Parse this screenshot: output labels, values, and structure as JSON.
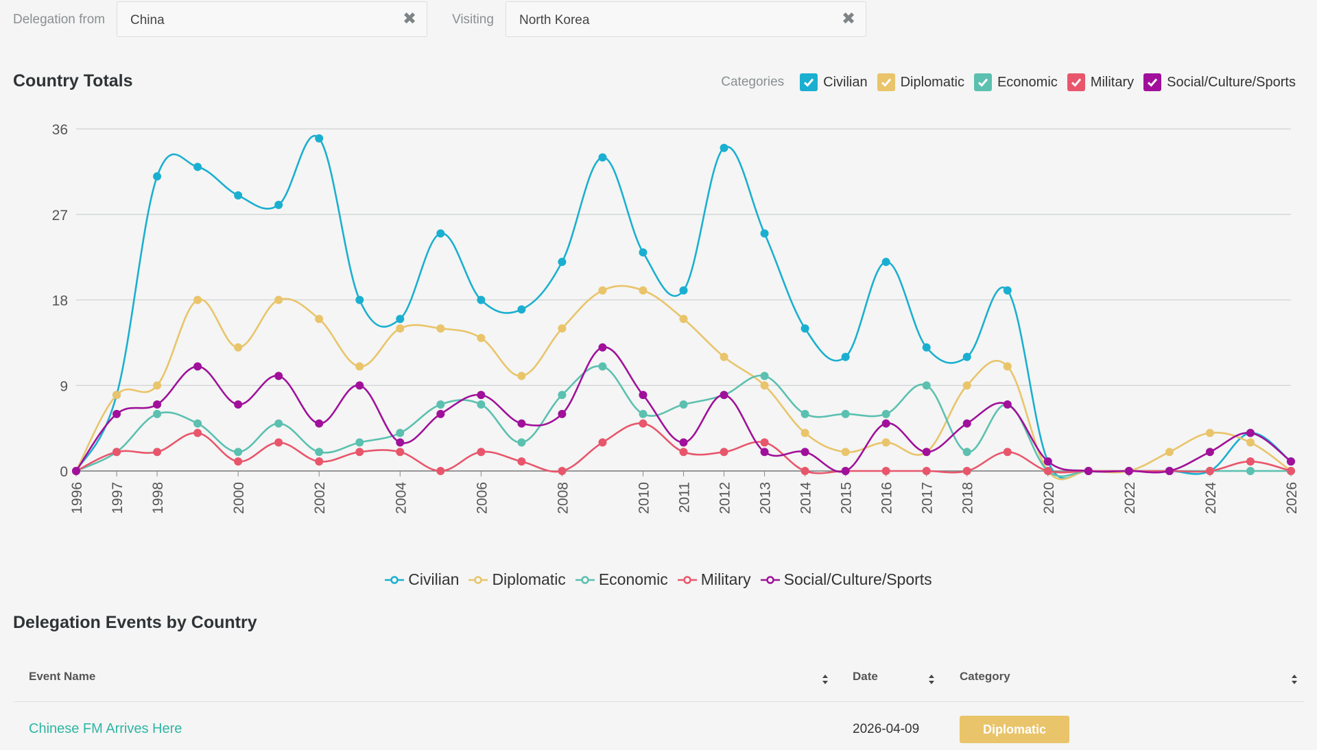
{
  "filters": {
    "from_label": "Delegation from",
    "from_value": "China",
    "visiting_label": "Visiting",
    "visiting_value": "North Korea"
  },
  "chart_section": {
    "title": "Country Totals"
  },
  "categories": {
    "label": "Categories",
    "items": [
      {
        "name": "Civilian",
        "color": "#1aafd0",
        "checked": true
      },
      {
        "name": "Diplomatic",
        "color": "#e9c46a",
        "checked": true
      },
      {
        "name": "Economic",
        "color": "#5bc0b0",
        "checked": true
      },
      {
        "name": "Military",
        "color": "#e8566c",
        "checked": true
      },
      {
        "name": "Social/Culture/Sports",
        "color": "#a0109a",
        "checked": true
      }
    ]
  },
  "chart_data": {
    "type": "line",
    "xlim": [
      1996,
      2026
    ],
    "ylim": [
      0,
      36
    ],
    "yticks": [
      0,
      9,
      18,
      27,
      36
    ],
    "xticks": [
      1996,
      1997,
      1998,
      2000,
      2002,
      2004,
      2006,
      2008,
      2010,
      2011,
      2012,
      2013,
      2014,
      2015,
      2016,
      2017,
      2018,
      2020,
      2022,
      2024,
      2026
    ],
    "x": [
      1996,
      1997,
      1998,
      1999,
      2000,
      2001,
      2002,
      2003,
      2004,
      2005,
      2006,
      2007,
      2008,
      2009,
      2010,
      2011,
      2012,
      2013,
      2014,
      2015,
      2016,
      2017,
      2018,
      2019,
      2020,
      2021,
      2022,
      2023,
      2024,
      2025,
      2026
    ],
    "grid": true,
    "legend": "bottom",
    "series": [
      {
        "name": "Civilian",
        "color": "#1aafd0",
        "values": [
          0,
          8,
          31,
          32,
          29,
          28,
          35,
          18,
          16,
          25,
          18,
          17,
          22,
          33,
          23,
          19,
          34,
          25,
          15,
          12,
          22,
          13,
          12,
          19,
          1,
          0,
          0,
          0,
          0,
          4,
          1
        ]
      },
      {
        "name": "Diplomatic",
        "color": "#e9c46a",
        "values": [
          0,
          8,
          9,
          18,
          13,
          18,
          16,
          11,
          15,
          15,
          14,
          10,
          15,
          19,
          19,
          16,
          12,
          9,
          4,
          2,
          3,
          2,
          9,
          11,
          0,
          0,
          0,
          2,
          4,
          3,
          0
        ]
      },
      {
        "name": "Economic",
        "color": "#5bc0b0",
        "values": [
          0,
          2,
          6,
          5,
          2,
          5,
          2,
          3,
          4,
          7,
          7,
          3,
          8,
          11,
          6,
          7,
          8,
          10,
          6,
          6,
          6,
          9,
          2,
          7,
          0,
          0,
          0,
          0,
          0,
          0,
          0
        ]
      },
      {
        "name": "Military",
        "color": "#e8566c",
        "values": [
          0,
          2,
          2,
          4,
          1,
          3,
          1,
          2,
          2,
          0,
          2,
          1,
          0,
          3,
          5,
          2,
          2,
          3,
          0,
          0,
          0,
          0,
          0,
          2,
          0,
          0,
          0,
          0,
          0,
          1,
          0
        ]
      },
      {
        "name": "Social/Culture/Sports",
        "color": "#a0109a",
        "values": [
          0,
          6,
          7,
          11,
          7,
          10,
          5,
          9,
          3,
          6,
          8,
          5,
          6,
          13,
          8,
          3,
          8,
          2,
          2,
          0,
          5,
          2,
          5,
          7,
          1,
          0,
          0,
          0,
          2,
          4,
          1
        ]
      }
    ]
  },
  "events_section": {
    "title": "Delegation Events by Country"
  },
  "table": {
    "columns": [
      "Event Name",
      "Date",
      "Category"
    ],
    "rows": [
      {
        "event": "Chinese FM Arrives Here",
        "date": "2026-04-09",
        "category": "Diplomatic"
      }
    ]
  }
}
